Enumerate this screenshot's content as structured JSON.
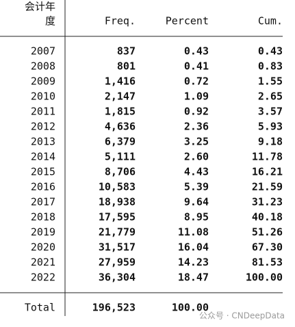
{
  "table": {
    "header": {
      "label_line1": "会计年",
      "label_line2": "度",
      "columns": [
        "Freq.",
        "Percent",
        "Cum."
      ]
    },
    "rows": [
      [
        "2007",
        "837",
        "0.43",
        "0.43"
      ],
      [
        "2008",
        "801",
        "0.41",
        "0.83"
      ],
      [
        "2009",
        "1,416",
        "0.72",
        "1.55"
      ],
      [
        "2010",
        "2,147",
        "1.09",
        "2.65"
      ],
      [
        "2011",
        "1,815",
        "0.92",
        "3.57"
      ],
      [
        "2012",
        "4,636",
        "2.36",
        "5.93"
      ],
      [
        "2013",
        "6,379",
        "3.25",
        "9.18"
      ],
      [
        "2014",
        "5,111",
        "2.60",
        "11.78"
      ],
      [
        "2015",
        "8,706",
        "4.43",
        "16.21"
      ],
      [
        "2016",
        "10,583",
        "5.39",
        "21.59"
      ],
      [
        "2017",
        "18,938",
        "9.64",
        "31.23"
      ],
      [
        "2018",
        "17,595",
        "8.95",
        "40.18"
      ],
      [
        "2019",
        "21,779",
        "11.08",
        "51.26"
      ],
      [
        "2020",
        "31,517",
        "16.04",
        "67.30"
      ],
      [
        "2021",
        "27,959",
        "14.23",
        "81.53"
      ],
      [
        "2022",
        "36,304",
        "18.47",
        "100.00"
      ]
    ],
    "total": [
      "Total",
      "196,523",
      "100.00"
    ]
  },
  "watermark": "公众号 · CNDeepData"
}
